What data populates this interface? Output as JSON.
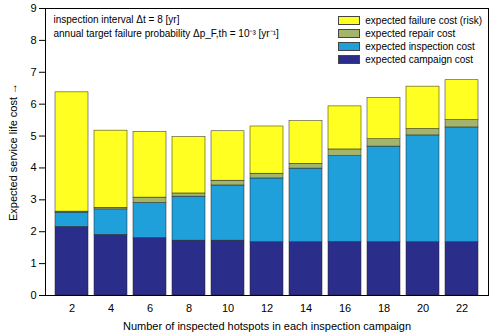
{
  "chart_data": {
    "type": "bar",
    "stacked": true,
    "x_label": "Number of inspected hotspots in each inspection campaign",
    "y_label": "Expected service life cost",
    "annotations": [
      "inspection interval Δt = 8 [yr]",
      "annual target failure probability Δp_F,th = 10⁻³ [yr⁻¹]"
    ],
    "categories": [
      2,
      4,
      6,
      8,
      10,
      12,
      14,
      16,
      18,
      20,
      22
    ],
    "series": [
      {
        "name": "expected campaign cost",
        "color": "#2b2d8a",
        "values": [
          2.15,
          1.9,
          1.8,
          1.72,
          1.72,
          1.67,
          1.67,
          1.68,
          1.67,
          1.67,
          1.67
        ]
      },
      {
        "name": "expected inspection cost",
        "color": "#1fa0da",
        "values": [
          0.45,
          0.8,
          1.1,
          1.38,
          1.73,
          2.0,
          2.31,
          2.69,
          3.0,
          3.35,
          3.6
        ]
      },
      {
        "name": "expected repair cost",
        "color": "#a3b56c",
        "values": [
          0.03,
          0.05,
          0.17,
          0.1,
          0.15,
          0.15,
          0.15,
          0.21,
          0.23,
          0.2,
          0.23
        ]
      },
      {
        "name": "expected failure cost (risk)",
        "color": "#ffff22",
        "values": [
          3.74,
          2.42,
          2.06,
          1.77,
          1.55,
          1.48,
          1.34,
          1.35,
          1.3,
          1.33,
          1.25
        ]
      }
    ],
    "ylim": [
      0,
      9
    ],
    "yticks": [
      0,
      1,
      2,
      3,
      4,
      5,
      6,
      7,
      8,
      9
    ],
    "grid": false,
    "legend": "upper right"
  }
}
